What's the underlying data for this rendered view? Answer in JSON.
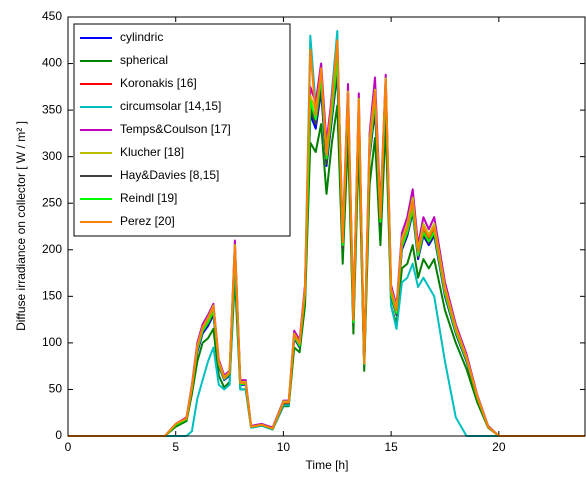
{
  "chart_data": {
    "type": "line",
    "xlabel": "Time [h]",
    "ylabel": "Diffuse irradiance on collector [ W / m² ]",
    "xlim": [
      0,
      24
    ],
    "xticks": [
      0,
      5,
      10,
      15,
      20
    ],
    "ylim": [
      0,
      450
    ],
    "yticks": [
      0,
      50,
      100,
      150,
      200,
      250,
      300,
      350,
      400,
      450
    ],
    "legend": "upper left",
    "x": [
      0,
      4.5,
      5,
      5.5,
      5.75,
      6,
      6.25,
      6.5,
      6.75,
      7,
      7.25,
      7.5,
      7.75,
      8,
      8.25,
      8.5,
      9,
      9.5,
      10,
      10.25,
      10.5,
      10.75,
      11,
      11.25,
      11.5,
      11.75,
      12,
      12.25,
      12.5,
      12.75,
      13,
      13.25,
      13.5,
      13.75,
      14,
      14.25,
      14.5,
      14.75,
      15,
      15.25,
      15.5,
      15.75,
      16,
      16.25,
      16.5,
      16.75,
      17,
      17.5,
      18,
      18.5,
      19,
      19.5,
      20,
      24
    ],
    "series": [
      {
        "name": "cylindric",
        "color": "#0000ff",
        "values": [
          0,
          0,
          12,
          18,
          50,
          90,
          110,
          118,
          130,
          75,
          60,
          65,
          195,
          55,
          55,
          10,
          12,
          8,
          35,
          35,
          105,
          95,
          150,
          345,
          330,
          370,
          290,
          340,
          390,
          200,
          350,
          120,
          345,
          75,
          300,
          350,
          225,
          370,
          150,
          130,
          200,
          215,
          240,
          190,
          215,
          205,
          215,
          150,
          110,
          80,
          40,
          10,
          0,
          0
        ]
      },
      {
        "name": "spherical",
        "color": "#007f00",
        "values": [
          0,
          0,
          10,
          16,
          45,
          80,
          100,
          105,
          115,
          65,
          52,
          58,
          170,
          50,
          50,
          9,
          11,
          7,
          32,
          32,
          95,
          90,
          140,
          315,
          305,
          335,
          260,
          315,
          355,
          185,
          320,
          110,
          315,
          70,
          270,
          320,
          205,
          335,
          140,
          120,
          180,
          185,
          205,
          170,
          190,
          180,
          190,
          135,
          100,
          72,
          36,
          9,
          0,
          0
        ]
      },
      {
        "name": "Koronakis [16]",
        "color": "#ff0000",
        "values": [
          0,
          0,
          12,
          19,
          52,
          95,
          115,
          125,
          138,
          78,
          62,
          68,
          202,
          57,
          57,
          10,
          12,
          8,
          36,
          36,
          108,
          98,
          155,
          355,
          340,
          380,
          300,
          350,
          400,
          205,
          360,
          124,
          355,
          77,
          310,
          360,
          232,
          380,
          155,
          134,
          206,
          222,
          248,
          196,
          222,
          212,
          222,
          155,
          114,
          83,
          42,
          10,
          0,
          0
        ]
      },
      {
        "name": "circumsolar [14,15]",
        "color": "#00bfbf",
        "values": [
          0,
          0,
          0,
          0,
          5,
          40,
          60,
          80,
          95,
          55,
          50,
          55,
          190,
          50,
          50,
          9,
          11,
          7,
          33,
          33,
          110,
          100,
          160,
          430,
          355,
          400,
          295,
          370,
          435,
          205,
          365,
          125,
          355,
          80,
          310,
          365,
          230,
          380,
          140,
          115,
          165,
          170,
          185,
          160,
          170,
          160,
          150,
          80,
          20,
          0,
          0,
          0,
          0,
          0
        ]
      },
      {
        "name": "Temps&Coulson [17]",
        "color": "#bf00bf",
        "values": [
          0,
          0,
          13,
          20,
          55,
          100,
          120,
          130,
          142,
          82,
          65,
          70,
          210,
          60,
          60,
          11,
          13,
          9,
          38,
          38,
          113,
          103,
          162,
          375,
          358,
          400,
          315,
          365,
          420,
          215,
          378,
          130,
          368,
          80,
          325,
          385,
          244,
          388,
          162,
          140,
          218,
          235,
          265,
          205,
          235,
          222,
          235,
          165,
          120,
          88,
          44,
          11,
          0,
          0
        ]
      },
      {
        "name": "Klucher [18]",
        "color": "#bfbf00",
        "values": [
          0,
          0,
          12,
          19,
          53,
          97,
          117,
          127,
          140,
          80,
          63,
          69,
          205,
          58,
          58,
          10,
          12,
          8,
          37,
          37,
          110,
          100,
          158,
          365,
          350,
          390,
          307,
          357,
          410,
          210,
          370,
          127,
          362,
          78,
          318,
          372,
          238,
          384,
          158,
          137,
          212,
          228,
          256,
          200,
          228,
          216,
          228,
          160,
          117,
          85,
          43,
          10,
          0,
          0
        ]
      },
      {
        "name": "Hay&Davies [8,15]",
        "color": "#404040",
        "values": [
          0,
          0,
          12,
          18,
          50,
          92,
          112,
          120,
          132,
          76,
          61,
          66,
          198,
          56,
          56,
          10,
          12,
          8,
          35,
          35,
          106,
          96,
          152,
          350,
          335,
          372,
          292,
          342,
          392,
          202,
          352,
          121,
          347,
          76,
          302,
          352,
          227,
          372,
          150,
          130,
          202,
          217,
          242,
          192,
          217,
          207,
          217,
          152,
          111,
          81,
          41,
          10,
          0,
          0
        ]
      },
      {
        "name": "Reindl [19]",
        "color": "#00ff00",
        "values": [
          0,
          0,
          12,
          18,
          51,
          93,
          113,
          122,
          134,
          77,
          61,
          67,
          200,
          56,
          56,
          10,
          12,
          8,
          36,
          36,
          107,
          97,
          153,
          360,
          340,
          385,
          298,
          348,
          405,
          205,
          362,
          122,
          355,
          77,
          305,
          362,
          230,
          378,
          152,
          132,
          204,
          219,
          244,
          194,
          219,
          209,
          219,
          153,
          112,
          82,
          41,
          10,
          0,
          0
        ]
      },
      {
        "name": "Perez [20]",
        "color": "#ff8000",
        "values": [
          0,
          0,
          13,
          19,
          52,
          96,
          116,
          126,
          139,
          79,
          62,
          68,
          203,
          57,
          57,
          10,
          12,
          8,
          36,
          36,
          109,
          99,
          156,
          415,
          345,
          395,
          302,
          360,
          425,
          208,
          368,
          125,
          360,
          78,
          312,
          370,
          234,
          382,
          156,
          135,
          209,
          224,
          252,
          198,
          224,
          214,
          224,
          157,
          115,
          84,
          42,
          10,
          0,
          0
        ]
      }
    ]
  }
}
